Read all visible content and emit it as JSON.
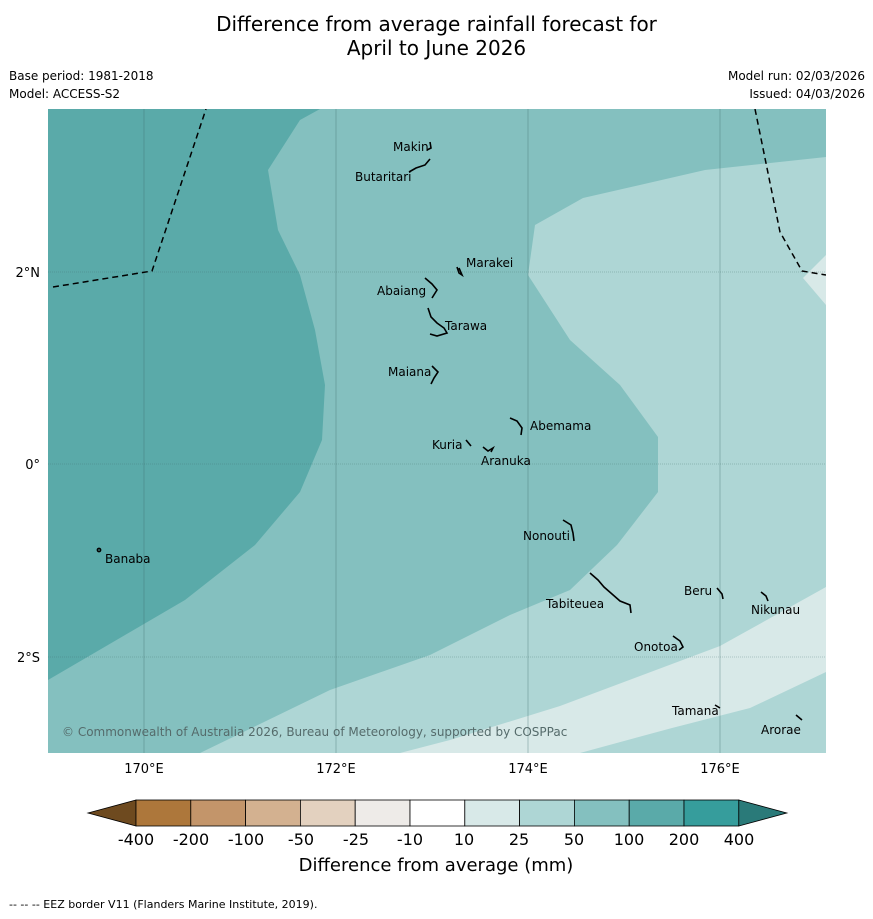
{
  "title": {
    "line1": "Difference from average rainfall forecast for",
    "line2": "April to June 2026"
  },
  "meta": {
    "base_period": "Base period: 1981-2018",
    "model": "Model: ACCESS-S2",
    "model_run": "Model run: 02/03/2026",
    "issued": "Issued: 04/03/2026"
  },
  "map": {
    "longitude_labels": [
      "170°E",
      "172°E",
      "174°E",
      "176°E"
    ],
    "latitude_labels": [
      "2°N",
      "0°",
      "2°S"
    ],
    "islands": [
      "Makin",
      "Butaritari",
      "Marakei",
      "Abaiang",
      "Tarawa",
      "Maiana",
      "Abemama",
      "Kuria",
      "Aranuka",
      "Nonouti",
      "Banaba",
      "Beru",
      "Tabiteuea",
      "Nikunau",
      "Onotoa",
      "Tamana",
      "Arorae"
    ],
    "copyright": "© Commonwealth of Australia 2026, Bureau of Meteorology, supported by COSPPac"
  },
  "colorbar": {
    "tick_labels": [
      "-400",
      "-200",
      "-100",
      "-50",
      "-25",
      "-10",
      "10",
      "25",
      "50",
      "100",
      "200",
      "400"
    ],
    "colors": [
      "#6e4a1f",
      "#ad773b",
      "#c3956a",
      "#d3b190",
      "#e3d1bf",
      "#eeebe8",
      "#ffffff",
      "#d8e9e8",
      "#aed6d5",
      "#84c0bf",
      "#5aaaa9",
      "#369d9c",
      "#2a7a79"
    ],
    "title": "Difference from average (mm)"
  },
  "footnote": "--  --  -- EEZ border V11 (Flanders Marine Institute, 2019)."
}
